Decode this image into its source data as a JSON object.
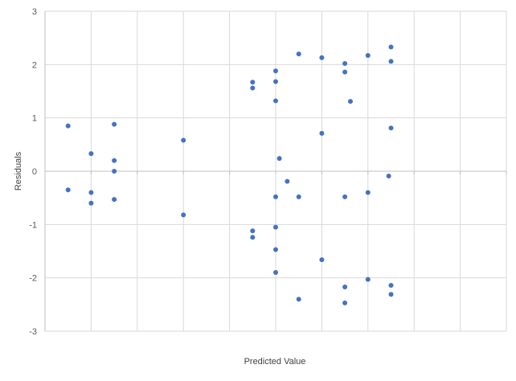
{
  "chart_data": {
    "type": "scatter",
    "title": "",
    "xlabel": "Predicted Value",
    "ylabel": "Residuals",
    "xlim": [
      0,
      10
    ],
    "ylim": [
      -3,
      3
    ],
    "yticks": [
      3,
      2,
      1,
      0,
      -1,
      -2,
      -3
    ],
    "grid": true,
    "legend": "none",
    "point_color": "#4472C4",
    "grid_color": "#D9D9D9",
    "series": [
      {
        "points": [
          {
            "x": 0.5,
            "y": 0.85
          },
          {
            "x": 0.5,
            "y": -0.35
          },
          {
            "x": 1.0,
            "y": 0.33
          },
          {
            "x": 1.0,
            "y": -0.4
          },
          {
            "x": 1.0,
            "y": -0.6
          },
          {
            "x": 1.5,
            "y": 0.88
          },
          {
            "x": 1.5,
            "y": 0.2
          },
          {
            "x": 1.5,
            "y": 0.0
          },
          {
            "x": 1.5,
            "y": -0.53
          },
          {
            "x": 3.0,
            "y": 0.58
          },
          {
            "x": 3.0,
            "y": -0.82
          },
          {
            "x": 4.5,
            "y": 1.67
          },
          {
            "x": 4.5,
            "y": 1.56
          },
          {
            "x": 4.5,
            "y": -1.12
          },
          {
            "x": 4.5,
            "y": -1.24
          },
          {
            "x": 5.0,
            "y": 1.88
          },
          {
            "x": 5.0,
            "y": 1.68
          },
          {
            "x": 5.0,
            "y": 1.32
          },
          {
            "x": 5.0,
            "y": -0.48
          },
          {
            "x": 5.0,
            "y": -1.05
          },
          {
            "x": 5.0,
            "y": -1.47
          },
          {
            "x": 5.0,
            "y": -1.9
          },
          {
            "x": 5.08,
            "y": 0.24
          },
          {
            "x": 5.25,
            "y": -0.19
          },
          {
            "x": 5.5,
            "y": 2.2
          },
          {
            "x": 5.5,
            "y": -0.48
          },
          {
            "x": 5.5,
            "y": -2.4
          },
          {
            "x": 6.0,
            "y": 2.13
          },
          {
            "x": 6.0,
            "y": 0.71
          },
          {
            "x": 6.0,
            "y": -1.66
          },
          {
            "x": 6.5,
            "y": 2.02
          },
          {
            "x": 6.5,
            "y": 1.86
          },
          {
            "x": 6.5,
            "y": -0.48
          },
          {
            "x": 6.5,
            "y": -2.17
          },
          {
            "x": 6.5,
            "y": -2.47
          },
          {
            "x": 6.62,
            "y": 1.31
          },
          {
            "x": 7.0,
            "y": 2.17
          },
          {
            "x": 7.0,
            "y": -0.4
          },
          {
            "x": 7.0,
            "y": -2.03
          },
          {
            "x": 7.45,
            "y": -0.09
          },
          {
            "x": 7.5,
            "y": 2.33
          },
          {
            "x": 7.5,
            "y": 2.06
          },
          {
            "x": 7.5,
            "y": 0.81
          },
          {
            "x": 7.5,
            "y": -2.14
          },
          {
            "x": 7.5,
            "y": -2.31
          }
        ]
      }
    ]
  }
}
